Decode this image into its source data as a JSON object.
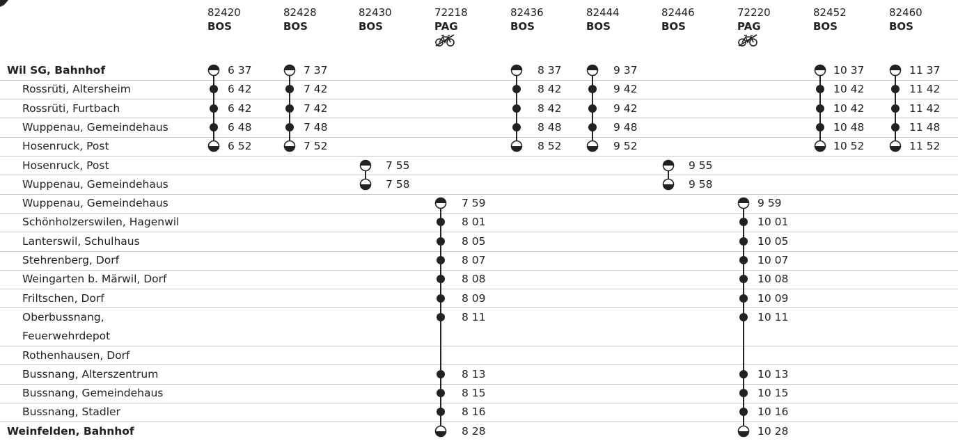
{
  "columns": [
    {
      "number": "82420",
      "operator": "BOS",
      "bike": false
    },
    {
      "number": "82428",
      "operator": "BOS",
      "bike": false
    },
    {
      "number": "82430",
      "operator": "BOS",
      "bike": false
    },
    {
      "number": "72218",
      "operator": "PAG",
      "bike": true
    },
    {
      "number": "82436",
      "operator": "BOS",
      "bike": false
    },
    {
      "number": "82444",
      "operator": "BOS",
      "bike": false
    },
    {
      "number": "82446",
      "operator": "BOS",
      "bike": false
    },
    {
      "number": "72220",
      "operator": "PAG",
      "bike": true
    },
    {
      "number": "82452",
      "operator": "BOS",
      "bike": false
    },
    {
      "number": "82460",
      "operator": "BOS",
      "bike": false
    }
  ],
  "stops": [
    {
      "name": "Wil SG, Bahnhof",
      "main": true,
      "times": [
        "6 37",
        "7 37",
        null,
        null,
        "8 37",
        "9 37",
        null,
        null,
        "10 37",
        "11 37"
      ]
    },
    {
      "name": "Rossrüti, Altersheim",
      "times": [
        "6 42",
        "7 42",
        null,
        null,
        "8 42",
        "9 42",
        null,
        null,
        "10 42",
        "11 42"
      ]
    },
    {
      "name": "Rossrüti, Furtbach",
      "times": [
        "6 42",
        "7 42",
        null,
        null,
        "8 42",
        "9 42",
        null,
        null,
        "10 42",
        "11 42"
      ]
    },
    {
      "name": "Wuppenau, Gemeindehaus",
      "times": [
        "6 48",
        "7 48",
        null,
        null,
        "8 48",
        "9 48",
        null,
        null,
        "10 48",
        "11 48"
      ]
    },
    {
      "name": "Hosenruck, Post",
      "times": [
        "6 52",
        "7 52",
        null,
        null,
        "8 52",
        "9 52",
        null,
        null,
        "10 52",
        "11 52"
      ]
    },
    {
      "name": "Hosenruck, Post",
      "times": [
        null,
        null,
        "7 55",
        null,
        null,
        null,
        "9 55",
        null,
        null,
        null
      ]
    },
    {
      "name": "Wuppenau, Gemeindehaus",
      "times": [
        null,
        null,
        "7 58",
        null,
        null,
        null,
        "9 58",
        null,
        null,
        null
      ]
    },
    {
      "name": "Wuppenau, Gemeindehaus",
      "times": [
        null,
        null,
        null,
        "7 59",
        null,
        null,
        null,
        "9 59",
        null,
        null
      ]
    },
    {
      "name": "Schönholzerswilen, Hagenwil",
      "times": [
        null,
        null,
        null,
        "8 01",
        null,
        null,
        null,
        "10 01",
        null,
        null
      ]
    },
    {
      "name": "Lanterswil, Schulhaus",
      "times": [
        null,
        null,
        null,
        "8 05",
        null,
        null,
        null,
        "10 05",
        null,
        null
      ]
    },
    {
      "name": "Stehrenberg, Dorf",
      "times": [
        null,
        null,
        null,
        "8 07",
        null,
        null,
        null,
        "10 07",
        null,
        null
      ]
    },
    {
      "name": "Weingarten b. Märwil, Dorf",
      "times": [
        null,
        null,
        null,
        "8 08",
        null,
        null,
        null,
        "10 08",
        null,
        null
      ]
    },
    {
      "name": "Friltschen, Dorf",
      "times": [
        null,
        null,
        null,
        "8 09",
        null,
        null,
        null,
        "10 09",
        null,
        null
      ]
    },
    {
      "name": "Oberbussnang,",
      "noline": true,
      "times": [
        null,
        null,
        null,
        "8 11",
        null,
        null,
        null,
        "10 11",
        null,
        null
      ]
    },
    {
      "name": "Feuerwehrdepot",
      "times": [
        null,
        null,
        null,
        null,
        null,
        null,
        null,
        null,
        null,
        null
      ]
    },
    {
      "name": "Rothenhausen, Dorf",
      "times": [
        null,
        null,
        null,
        null,
        null,
        null,
        null,
        null,
        null,
        null
      ]
    },
    {
      "name": "Bussnang, Alterszentrum",
      "times": [
        null,
        null,
        null,
        "8 13",
        null,
        null,
        null,
        "10 13",
        null,
        null
      ]
    },
    {
      "name": "Bussnang, Gemeindehaus",
      "times": [
        null,
        null,
        null,
        "8 15",
        null,
        null,
        null,
        "10 15",
        null,
        null
      ]
    },
    {
      "name": "Bussnang, Stadler",
      "times": [
        null,
        null,
        null,
        "8 16",
        null,
        null,
        null,
        "10 16",
        null,
        null
      ]
    },
    {
      "name": "Weinfelden, Bahnhof",
      "main": true,
      "times": [
        null,
        null,
        null,
        "8 28",
        null,
        null,
        null,
        "10 28",
        null,
        null
      ]
    }
  ],
  "icons": {
    "departure": "half-circle-top-filled-icon",
    "stop": "dot-icon",
    "arrival": "half-circle-bottom-filled-icon",
    "bike": "bicycle-reservation-icon"
  },
  "colors": {
    "ink": "#222222",
    "rule": "#c8c8c8"
  }
}
